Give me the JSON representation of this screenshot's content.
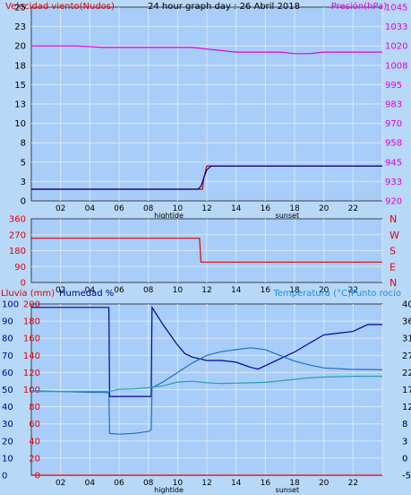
{
  "chart_data": [
    {
      "type": "line",
      "title": "24 hour graph day : 26 Abril 2018",
      "left_axis_label": "Velocidad viento(Nudos)",
      "right_axis_label": "Presión(hPa)",
      "xlim": [
        0,
        24
      ],
      "x_ticks": [
        "02",
        "04",
        "06",
        "08",
        "10",
        "12",
        "14",
        "16",
        "18",
        "20",
        "22",
        ""
      ],
      "annotations": {
        "hightide": "hightide",
        "sunset": "sunset"
      },
      "left_ticks": [
        0,
        3,
        5,
        8,
        10,
        13,
        15,
        18,
        20,
        23,
        25
      ],
      "right_ticks": [
        920,
        933,
        945,
        958,
        970,
        983,
        995,
        1008,
        1020,
        1033,
        1045
      ],
      "ylim_left": [
        0,
        25
      ],
      "ylim_right": [
        920,
        1045
      ],
      "series": [
        {
          "axis": "left",
          "color": "#c00000",
          "x": [
            0,
            11.5,
            11.7,
            11.8,
            12.0,
            24
          ],
          "y": [
            1.5,
            1.5,
            1.5,
            3.0,
            4.5,
            4.5
          ]
        },
        {
          "axis": "left",
          "color": "#00008b",
          "x": [
            0,
            11.4,
            11.6,
            11.8,
            12.0,
            12.3,
            24
          ],
          "y": [
            1.5,
            1.5,
            1.9,
            3.0,
            4.0,
            4.5,
            4.5
          ]
        },
        {
          "axis": "right",
          "color": "#e000e0",
          "x": [
            0,
            1,
            3,
            5,
            7,
            9,
            11,
            12,
            13,
            14,
            15,
            16,
            17,
            18,
            19,
            20,
            22,
            24
          ],
          "y": [
            1020,
            1020,
            1020,
            1019,
            1019,
            1019,
            1019,
            1018,
            1017,
            1016,
            1016,
            1016,
            1016,
            1015,
            1015,
            1016,
            1016,
            1016
          ]
        }
      ]
    },
    {
      "type": "line",
      "title": "",
      "xlim": [
        0,
        24
      ],
      "x_ticks": [
        "02",
        "04",
        "06",
        "08",
        "10",
        "12",
        "14",
        "16",
        "18",
        "20",
        "22",
        ""
      ],
      "left_ticks": [
        0,
        90,
        180,
        270,
        360
      ],
      "ylim_left": [
        0,
        360
      ],
      "right_labels": [
        "N",
        "W",
        "S",
        "E",
        "N"
      ],
      "series": [
        {
          "axis": "left",
          "color": "#e00000",
          "x": [
            0,
            11.5,
            11.6,
            24
          ],
          "y": [
            250,
            250,
            115,
            115
          ]
        }
      ]
    },
    {
      "type": "line",
      "title": "",
      "left_axis_label_1": "Lluvia (mm)",
      "left_axis_label_2": "Humedad %",
      "right_axis_label": "Temperatura (°C)Punto rocío",
      "xlim": [
        0,
        24
      ],
      "x_ticks": [
        "02",
        "04",
        "06",
        "08",
        "10",
        "12",
        "14",
        "16",
        "18",
        "20",
        "22",
        ""
      ],
      "annotations": {
        "hightide": "hightide",
        "sunset": "sunset"
      },
      "rain_ticks": [
        0,
        20,
        40,
        60,
        80,
        100,
        120,
        140,
        160,
        180,
        200
      ],
      "humidity_ticks": [
        0,
        10,
        20,
        30,
        40,
        50,
        60,
        70,
        80,
        90,
        100
      ],
      "right_ticks": [
        -5,
        0,
        3,
        8,
        12,
        17,
        22,
        27,
        31,
        36,
        40
      ],
      "ylim_left": [
        0,
        100
      ],
      "ylim_right": [
        -5,
        40
      ],
      "series": [
        {
          "axis": "humidity",
          "color": "#0000a0",
          "x": [
            0,
            5.3,
            5.35,
            8.2,
            8.25,
            9,
            10,
            10.5,
            11,
            12,
            13,
            14,
            15,
            15.5,
            16,
            17,
            18,
            19,
            20,
            21,
            22,
            23,
            24
          ],
          "y": [
            98,
            98,
            46,
            46,
            98,
            88,
            76,
            71,
            69,
            67,
            67,
            66,
            63,
            62,
            64,
            68,
            72,
            77,
            82,
            83,
            84,
            88,
            88
          ]
        },
        {
          "axis": "right",
          "color": "#1e6ec8",
          "x": [
            0,
            2,
            4,
            5,
            5.3,
            5.35,
            6,
            7,
            8,
            8.2,
            8.25,
            9,
            10,
            11,
            12,
            13,
            14,
            15,
            16,
            17,
            18,
            19,
            20,
            21,
            22,
            23,
            24
          ],
          "y": [
            17.2,
            17,
            16.8,
            16.8,
            16.6,
            6,
            5.8,
            6,
            6.5,
            7,
            18,
            19.5,
            22,
            24.5,
            26.5,
            27.5,
            28,
            28.5,
            28,
            26.5,
            25,
            24,
            23.2,
            23,
            22.8,
            22.8,
            22.7
          ]
        },
        {
          "axis": "right",
          "color": "#28a0a8",
          "x": [
            0,
            2,
            4,
            5.3,
            6,
            7,
            8,
            9,
            10,
            11,
            12,
            13,
            14,
            15,
            16,
            17,
            18,
            19,
            20,
            21,
            22,
            24
          ],
          "y": [
            17,
            17,
            17,
            17,
            17.6,
            17.7,
            18,
            18.5,
            19.5,
            19.7,
            19.3,
            19.1,
            19.2,
            19.3,
            19.4,
            19.8,
            20.2,
            20.6,
            20.8,
            20.9,
            21,
            21
          ]
        },
        {
          "axis": "rain",
          "color": "#e00000",
          "x": [
            0,
            24
          ],
          "y": [
            0,
            0
          ]
        }
      ]
    }
  ]
}
